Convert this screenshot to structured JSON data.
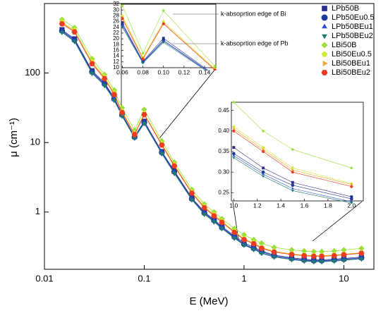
{
  "chart_data": {
    "type": "line",
    "xlabel": "E (MeV)",
    "ylabel": "μ (cm⁻¹)",
    "xscale": "log",
    "yscale": "log",
    "xlim": [
      0.01,
      20
    ],
    "ylim": [
      0.15,
      1000
    ],
    "xticks": [
      0.01,
      0.1,
      1,
      10
    ],
    "yticks": [
      1,
      10,
      100
    ],
    "legend": "upper right",
    "x": [
      0.015,
      0.02,
      0.03,
      0.04,
      0.05,
      0.06,
      0.08,
      0.1,
      0.15,
      0.2,
      0.3,
      0.4,
      0.5,
      0.6,
      0.8,
      1,
      1.25,
      1.5,
      2,
      3,
      4,
      5,
      6,
      8,
      10,
      15
    ],
    "series": [
      {
        "name": "LPb50B",
        "color": "#2b2b8c",
        "marker": "square",
        "values": [
          420,
          310,
          108,
          72,
          44,
          25.5,
          12.2,
          20.2,
          7.4,
          3.9,
          1.6,
          1.0,
          0.78,
          0.62,
          0.45,
          0.36,
          0.31,
          0.275,
          0.24,
          0.22,
          0.21,
          0.205,
          0.205,
          0.21,
          0.215,
          0.225
        ]
      },
      {
        "name": "LPb50Eu0.5",
        "color": "#1f3a9e",
        "marker": "circle",
        "values": [
          405,
          300,
          104,
          70,
          42.5,
          25,
          12,
          19.5,
          7.2,
          3.8,
          1.55,
          0.97,
          0.76,
          0.6,
          0.44,
          0.345,
          0.3,
          0.268,
          0.235,
          0.215,
          0.205,
          0.2,
          0.2,
          0.205,
          0.21,
          0.22
        ]
      },
      {
        "name": "LPb50BEu1",
        "color": "#2a4fd0",
        "marker": "triangle-up",
        "values": [
          395,
          292,
          101,
          68,
          41.5,
          24.5,
          11.8,
          19.2,
          7.1,
          3.7,
          1.52,
          0.95,
          0.74,
          0.59,
          0.43,
          0.34,
          0.295,
          0.26,
          0.228,
          0.21,
          0.2,
          0.196,
          0.196,
          0.2,
          0.205,
          0.215
        ]
      },
      {
        "name": "LPb50BEu2",
        "color": "#1e7a6e",
        "marker": "triangle-down",
        "values": [
          385,
          285,
          99,
          66,
          40.5,
          24,
          11.6,
          18.8,
          6.9,
          3.6,
          1.5,
          0.93,
          0.72,
          0.58,
          0.42,
          0.335,
          0.29,
          0.255,
          0.225,
          0.207,
          0.197,
          0.193,
          0.193,
          0.197,
          0.202,
          0.212
        ]
      },
      {
        "name": "LBi50B",
        "color": "#9be03a",
        "marker": "diamond",
        "values": [
          590,
          450,
          160,
          95,
          57,
          31.5,
          15,
          29.8,
          10.5,
          5.2,
          2.1,
          1.3,
          1.0,
          0.8,
          0.58,
          0.47,
          0.4,
          0.355,
          0.31,
          0.285,
          0.275,
          0.27,
          0.27,
          0.275,
          0.285,
          0.3
        ]
      },
      {
        "name": "LBi50Eu0.5",
        "color": "#d4e83a",
        "marker": "pentagon",
        "values": [
          540,
          410,
          145,
          88,
          52,
          28,
          13.5,
          26,
          9.6,
          4.8,
          1.95,
          1.2,
          0.92,
          0.74,
          0.53,
          0.41,
          0.36,
          0.31,
          0.272,
          0.25,
          0.24,
          0.236,
          0.236,
          0.24,
          0.248,
          0.26
        ]
      },
      {
        "name": "LBi50BEu1",
        "color": "#f5a623",
        "marker": "triangle-right",
        "values": [
          525,
          400,
          140,
          85,
          50,
          27.5,
          13.2,
          25.5,
          9.4,
          4.7,
          1.9,
          1.17,
          0.9,
          0.72,
          0.52,
          0.405,
          0.355,
          0.305,
          0.27,
          0.248,
          0.238,
          0.234,
          0.234,
          0.238,
          0.246,
          0.258
        ]
      },
      {
        "name": "LBi50BEu2",
        "color": "#ee3b24",
        "marker": "hexagon",
        "values": [
          510,
          390,
          136,
          83,
          49,
          27,
          13,
          25.2,
          9.2,
          4.6,
          1.87,
          1.15,
          0.88,
          0.71,
          0.51,
          0.4,
          0.35,
          0.3,
          0.265,
          0.245,
          0.235,
          0.231,
          0.231,
          0.235,
          0.243,
          0.255
        ]
      }
    ],
    "insets": [
      {
        "xlim": [
          0.059,
          0.151
        ],
        "ylim": [
          10,
          32
        ],
        "xticks": [
          0.06,
          0.08,
          {
            "value": 0.1,
            "label": "0.10"
          },
          0.12,
          0.14
        ],
        "yticks": [
          10,
          12,
          14,
          16,
          18,
          20,
          22,
          24,
          26,
          28,
          30,
          32
        ],
        "annotations": [
          "k-absoprtion edge of Bi",
          "k-absoprtion edge of Pb"
        ]
      },
      {
        "xlim": [
          0.98,
          2.1
        ],
        "ylim": [
          0.23,
          0.47
        ],
        "xticks": [
          {
            "value": 1,
            "label": "1.0"
          },
          1.2,
          1.4,
          1.6,
          1.8,
          {
            "value": 2,
            "label": "2.0"
          }
        ],
        "yticks": [
          0.25,
          {
            "value": 0.3,
            "label": "0.30"
          },
          0.35,
          {
            "value": 0.4,
            "label": "0.40"
          },
          0.45
        ]
      }
    ]
  }
}
